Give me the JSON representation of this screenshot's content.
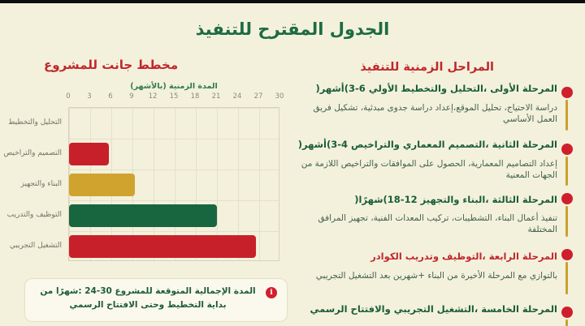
{
  "page": {
    "title": "الجدول المقترح للتنفيذ"
  },
  "colors": {
    "background": "#f3f1dc",
    "top_bar": "#0d0d0d",
    "title_green": "#1c6b43",
    "accent_red": "#c1272d",
    "bar_yellow": "#d0a32e",
    "bar_green": "#17663f",
    "timeline_line": "#c9a22c",
    "body_text_green": "#43614f"
  },
  "gantt": {
    "section_title": "مخطط جانت للمشروع",
    "note": {
      "icon": "info-icon",
      "text": "المدة الإجمالية المتوقعة للمشروع 30-24 :شهرًا من بداية التخطيط وحتى الافتتاح الرسمي"
    }
  },
  "chart_data": {
    "type": "bar",
    "orientation": "horizontal",
    "title": "مخطط جانت للمشروع",
    "xlabel": "المدة الزمنية (بالأشهر)",
    "xlim": [
      0,
      30
    ],
    "xticks": [
      0,
      3,
      6,
      9,
      12,
      15,
      18,
      21,
      24,
      27,
      30
    ],
    "grid": true,
    "categories": [
      "التحليل والتخطيط",
      "التصميم والتراخيص",
      "البناء والتجهيز",
      "التوظيف والتدريب",
      "التشغيل التجريبي"
    ],
    "values": [
      0,
      5.7,
      9.4,
      21,
      26.5
    ],
    "bar_colors": [
      "none",
      "#c8202a",
      "#d0a32e",
      "#17663f",
      "#c8202a"
    ]
  },
  "timeline": {
    "section_title": "المراحل الزمنية للتنفيذ",
    "phases": [
      {
        "title": "المرحلة الأولى ،التحليل والتخطيط الأولي 6-3)أشهر(",
        "title_color": "#1a5c38",
        "description": "دراسة الاحتياج، تحليل الموقع،إعداد دراسة جدوى مبدئية، تشكيل فريق العمل الأساسي"
      },
      {
        "title": "المرحلة الثانية ،التصميم المعماري والتراخيص 4-3)أشهر(",
        "title_color": "#1a5c38",
        "description": "إعداد التصاميم المعمارية، الحصول على الموافقات والتراخيص اللازمة من الجهات المعنية"
      },
      {
        "title": "المرحلة الثالثة ،البناء والتجهيز 12-18)شهرًا(",
        "title_color": "#1a5c38",
        "description": "تنفيذ أعمال البناء، التشطيبات، تركيب المعدات الفنية، تجهيز المرافق المختلفة"
      },
      {
        "title": "المرحلة الرابعة ،التوظيف وتدريب الكوادر",
        "title_color": "#c1272d",
        "description": "بالتوازي مع المرحلة الأخيرة من البناء +شهرين بعد التشغيل التجريبي"
      },
      {
        "title": "المرحلة الخامسة ،التشغيل التجريبي والافتتاح الرسمي",
        "title_color": "#1a5c38",
        "description": ""
      }
    ]
  }
}
